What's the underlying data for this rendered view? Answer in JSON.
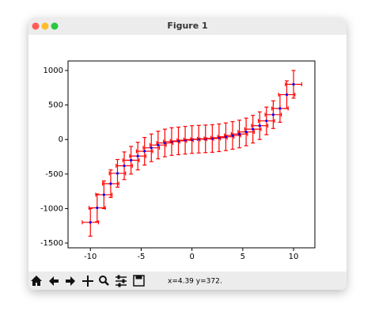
{
  "window": {
    "title": "Figure 1",
    "status": "x=4.39 y=372."
  },
  "chart_data": {
    "type": "errorbar",
    "x": [
      -10,
      -9.333,
      -8.667,
      -8,
      -7.333,
      -6.667,
      -6,
      -5.333,
      -4.667,
      -4,
      -3.333,
      -2.667,
      -2,
      -1.333,
      -0.667,
      0,
      0.667,
      1.333,
      2,
      2.667,
      3.333,
      4,
      4.667,
      5.333,
      6,
      6.667,
      7.333,
      8,
      8.667,
      9.333,
      10
    ],
    "series": [
      {
        "color": "#0000ff",
        "ecolor": "#ff0000",
        "values": [
          -1200,
          -990,
          -800,
          -640,
          -490,
          -380,
          -300,
          -240,
          -170,
          -120,
          -80,
          -50,
          -30,
          -20,
          -10,
          0,
          5,
          10,
          15,
          25,
          40,
          60,
          80,
          110,
          150,
          200,
          270,
          360,
          450,
          650,
          800
        ],
        "xerr": 0.8,
        "yerr": 200
      }
    ],
    "xlim": [
      -12.2,
      12.1
    ],
    "ylim": [
      -1569,
      1138
    ],
    "xticks": [
      -10,
      -5,
      0,
      5,
      10
    ],
    "yticks": [
      -1500,
      -1000,
      -500,
      0,
      500,
      1000
    ]
  }
}
